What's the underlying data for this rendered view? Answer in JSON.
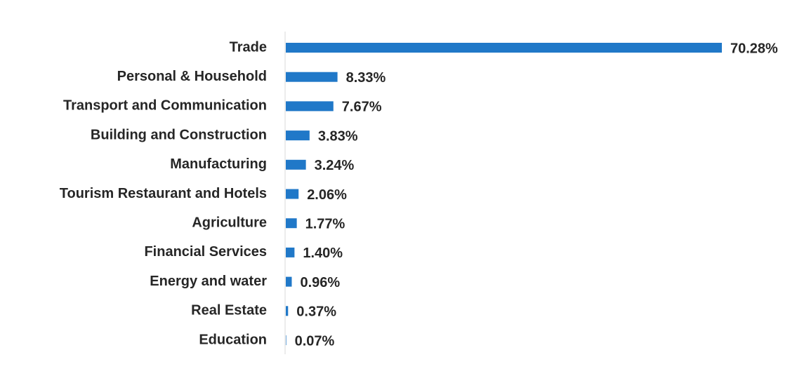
{
  "chart_data": {
    "type": "bar",
    "orientation": "horizontal",
    "categories": [
      "Trade",
      "Personal & Household",
      "Transport and Communication",
      "Building and Construction",
      "Manufacturing",
      "Tourism Restaurant and Hotels",
      "Agriculture",
      "Financial Services",
      "Energy and water",
      "Real Estate",
      "Education"
    ],
    "values": [
      70.28,
      8.33,
      7.67,
      3.83,
      3.24,
      2.06,
      1.77,
      1.4,
      0.96,
      0.37,
      0.07
    ],
    "value_labels": [
      "70.28%",
      "8.33%",
      "7.67%",
      "3.83%",
      "3.24%",
      "2.06%",
      "1.77%",
      "1.40%",
      "0.96%",
      "0.37%",
      "0.07%"
    ],
    "color": "#2078c8"
  }
}
